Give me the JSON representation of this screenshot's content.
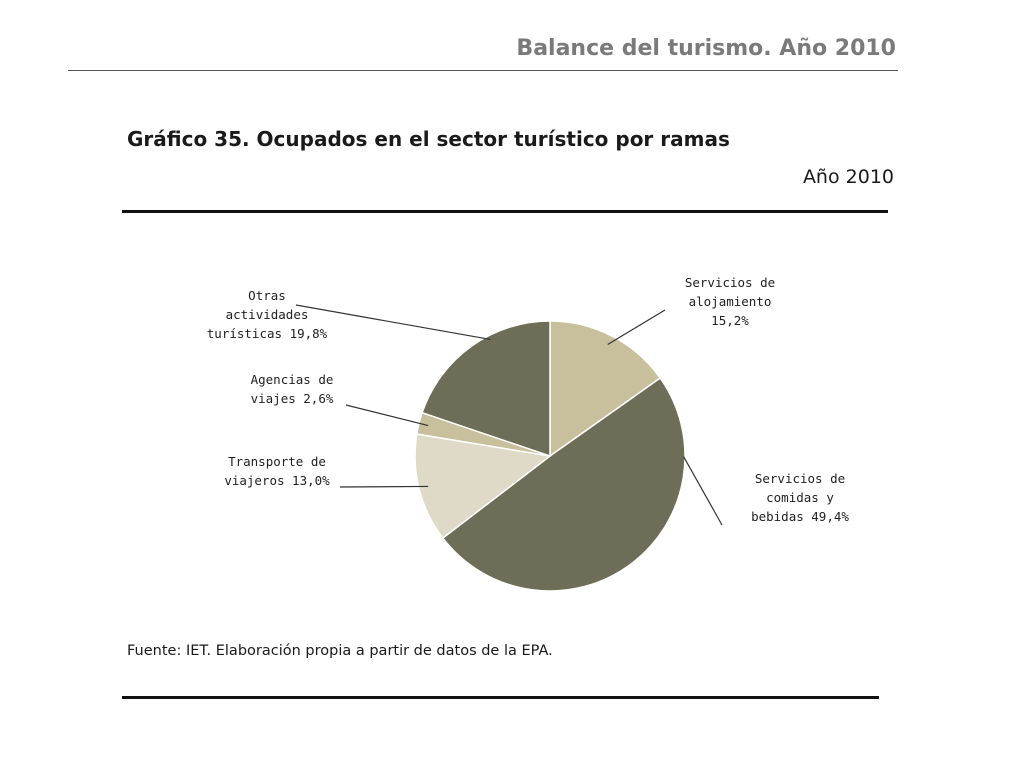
{
  "header": {
    "title": "Balance del turismo. Año 2010"
  },
  "chart": {
    "title": "Gráfico 35. Ocupados en el sector turístico por ramas",
    "year": "Año 2010",
    "source": "Fuente: IET. Elaboración propia a partir de datos de la EPA."
  },
  "chart_data": {
    "type": "pie",
    "title": "Gráfico 35. Ocupados en el sector turístico por ramas",
    "subtitle": "Año 2010",
    "slices": [
      {
        "name": "Servicios de alojamiento",
        "value": 15.2,
        "label_lines": [
          "Servicios de",
          "alojamiento",
          "15,2%"
        ],
        "color": "#c8bf9c"
      },
      {
        "name": "Servicios de comidas y bebidas",
        "value": 49.4,
        "label_lines": [
          "Servicios de",
          "comidas y",
          "bebidas 49,4%"
        ],
        "color": "#6e6e58"
      },
      {
        "name": "Transporte de viajeros",
        "value": 13.0,
        "label_lines": [
          "Transporte de",
          "viajeros 13,0%"
        ],
        "color": "#dfdac8"
      },
      {
        "name": "Agencias de viajes",
        "value": 2.6,
        "label_lines": [
          "Agencias de",
          "viajes 2,6%"
        ],
        "color": "#c8bf9c"
      },
      {
        "name": "Otras actividades turísticas",
        "value": 19.8,
        "label_lines": [
          "Otras",
          "actividades",
          "turísticas 19,8%"
        ],
        "color": "#6e6e58"
      }
    ],
    "start_angle_deg": 0,
    "direction": "clockwise",
    "legend": "none"
  }
}
